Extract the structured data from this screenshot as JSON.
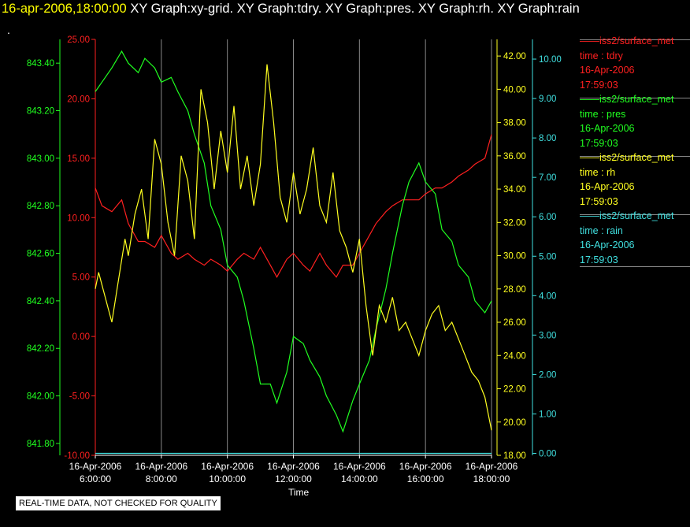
{
  "header": {
    "time": "16-apr-2006,18:00:00",
    "graphs": "XY Graph:xy-grid.  XY Graph:tdry.  XY Graph:pres.  XY Graph:rh.  XY Graph:rain",
    "dot": "."
  },
  "footer": {
    "quality_note": "REAL-TIME DATA, NOT CHECKED FOR QUALITY"
  },
  "legend": [
    {
      "source": "iss2/surface_met",
      "var": "time : tdry",
      "date": "16-Apr-2006",
      "time": "17:59:03",
      "color": "#ff2020"
    },
    {
      "source": "iss2/surface_met",
      "var": "time : pres",
      "date": "16-Apr-2006",
      "time": "17:59:03",
      "color": "#20ff20"
    },
    {
      "source": "iss2/surface_met",
      "var": "time : rh",
      "date": "16-Apr-2006",
      "time": "17:59:03",
      "color": "#ffff20"
    },
    {
      "source": "iss2/surface_met",
      "var": "time : rain",
      "date": "16-Apr-2006",
      "time": "17:59:03",
      "color": "#40e0e0"
    }
  ],
  "chart_data": {
    "type": "line",
    "xlabel": "Time",
    "x_ticks": [
      [
        "16-Apr-2006",
        "6:00:00"
      ],
      [
        "16-Apr-2006",
        "8:00:00"
      ],
      [
        "16-Apr-2006",
        "10:00:00"
      ],
      [
        "16-Apr-2006",
        "12:00:00"
      ],
      [
        "16-Apr-2006",
        "14:00:00"
      ],
      [
        "16-Apr-2006",
        "16:00:00"
      ],
      [
        "16-Apr-2006",
        "18:00:00"
      ]
    ],
    "xlim_hours": [
      6,
      18
    ],
    "grid": "vertical lines at each x tick",
    "axes": {
      "pres": {
        "color": "#20ff20",
        "lim": [
          841.75,
          843.5
        ],
        "ticks": [
          "841.80",
          "842.00",
          "842.20",
          "842.40",
          "842.60",
          "842.80",
          "843.00",
          "843.20",
          "843.40"
        ],
        "tick_values": [
          841.8,
          842.0,
          842.2,
          842.4,
          842.6,
          842.8,
          843.0,
          843.2,
          843.4
        ]
      },
      "tdry": {
        "color": "#ff2020",
        "lim": [
          -10,
          25
        ],
        "ticks": [
          "-10.00",
          "-5.00",
          "0.00",
          "5.00",
          "10.00",
          "15.00",
          "20.00",
          "25.00"
        ],
        "tick_values": [
          -10,
          -5,
          0,
          5,
          10,
          15,
          20,
          25
        ]
      },
      "rh": {
        "color": "#ffff20",
        "lim": [
          18,
          43
        ],
        "ticks": [
          "18.00",
          "20.00",
          "22.00",
          "24.00",
          "26.00",
          "28.00",
          "30.00",
          "32.00",
          "34.00",
          "36.00",
          "38.00",
          "40.00",
          "42.00"
        ],
        "tick_values": [
          18,
          20,
          22,
          24,
          26,
          28,
          30,
          32,
          34,
          36,
          38,
          40,
          42
        ]
      },
      "rain": {
        "color": "#40e0e0",
        "lim": [
          -0.05,
          10.5
        ],
        "ticks": [
          "0.00",
          "1.00",
          "2.00",
          "3.00",
          "4.00",
          "5.00",
          "6.00",
          "7.00",
          "8.00",
          "9.00",
          "10.00"
        ],
        "tick_values": [
          0,
          1,
          2,
          3,
          4,
          5,
          6,
          7,
          8,
          9,
          10
        ]
      }
    },
    "series": [
      {
        "name": "iss2/surface_met time : tdry",
        "axis": "tdry",
        "color": "#ff2020",
        "x": [
          6.0,
          6.2,
          6.5,
          6.8,
          7.0,
          7.3,
          7.5,
          7.8,
          8.0,
          8.3,
          8.5,
          8.8,
          9.0,
          9.3,
          9.5,
          9.8,
          10.0,
          10.3,
          10.5,
          10.8,
          11.0,
          11.3,
          11.5,
          11.8,
          12.0,
          12.3,
          12.5,
          12.8,
          13.0,
          13.3,
          13.5,
          13.8,
          14.0,
          14.3,
          14.5,
          14.8,
          15.0,
          15.3,
          15.5,
          15.8,
          16.0,
          16.3,
          16.5,
          16.8,
          17.0,
          17.3,
          17.5,
          17.8,
          18.0
        ],
        "y": [
          12.5,
          11.0,
          10.5,
          11.5,
          9.5,
          8.0,
          8.0,
          7.5,
          8.5,
          7.0,
          6.5,
          7.0,
          6.5,
          6.0,
          6.5,
          6.0,
          5.5,
          6.5,
          7.0,
          6.5,
          7.5,
          6.0,
          5.0,
          6.5,
          7.0,
          6.0,
          5.5,
          7.0,
          6.0,
          5.0,
          6.0,
          6.0,
          7.0,
          8.5,
          9.5,
          10.5,
          11.0,
          11.5,
          11.5,
          11.5,
          12.0,
          12.5,
          12.5,
          13.0,
          13.5,
          14.0,
          14.5,
          15.0,
          17.0
        ]
      },
      {
        "name": "iss2/surface_met time : pres",
        "axis": "pres",
        "color": "#20ff20",
        "x": [
          6.0,
          6.2,
          6.5,
          6.8,
          7.0,
          7.3,
          7.5,
          7.8,
          8.0,
          8.3,
          8.5,
          8.8,
          9.0,
          9.3,
          9.5,
          9.8,
          10.0,
          10.3,
          10.5,
          10.8,
          11.0,
          11.3,
          11.5,
          11.8,
          12.0,
          12.3,
          12.5,
          12.8,
          13.0,
          13.3,
          13.5,
          13.8,
          14.0,
          14.3,
          14.5,
          14.8,
          15.0,
          15.3,
          15.5,
          15.8,
          16.0,
          16.3,
          16.5,
          16.8,
          17.0,
          17.3,
          17.5,
          17.8,
          18.0
        ],
        "y": [
          843.28,
          843.32,
          843.38,
          843.45,
          843.4,
          843.36,
          843.42,
          843.38,
          843.32,
          843.34,
          843.28,
          843.2,
          843.1,
          842.98,
          842.8,
          842.7,
          842.55,
          842.5,
          842.4,
          842.2,
          842.05,
          842.05,
          841.97,
          842.1,
          842.25,
          842.22,
          842.15,
          842.08,
          842.0,
          841.92,
          841.85,
          841.98,
          842.05,
          842.15,
          842.28,
          842.45,
          842.6,
          842.8,
          842.9,
          842.98,
          842.9,
          842.85,
          842.7,
          842.65,
          842.55,
          842.5,
          842.4,
          842.35,
          842.4
        ]
      },
      {
        "name": "iss2/surface_met time : rh",
        "axis": "rh",
        "color": "#ffff20",
        "x": [
          6.0,
          6.1,
          6.3,
          6.5,
          6.7,
          6.9,
          7.0,
          7.2,
          7.4,
          7.6,
          7.8,
          8.0,
          8.2,
          8.4,
          8.6,
          8.8,
          9.0,
          9.2,
          9.4,
          9.6,
          9.8,
          10.0,
          10.2,
          10.4,
          10.6,
          10.8,
          11.0,
          11.2,
          11.4,
          11.6,
          11.8,
          12.0,
          12.2,
          12.4,
          12.6,
          12.8,
          13.0,
          13.2,
          13.4,
          13.6,
          13.8,
          14.0,
          14.2,
          14.4,
          14.6,
          14.8,
          15.0,
          15.2,
          15.4,
          15.6,
          15.8,
          16.0,
          16.2,
          16.4,
          16.6,
          16.8,
          17.0,
          17.2,
          17.4,
          17.6,
          17.8,
          18.0
        ],
        "y": [
          28.0,
          29.0,
          27.5,
          26.0,
          28.5,
          31.0,
          30.0,
          32.5,
          34.0,
          31.0,
          37.0,
          35.5,
          32.0,
          30.0,
          36.0,
          34.5,
          31.0,
          40.0,
          38.0,
          34.0,
          37.5,
          35.0,
          39.0,
          34.0,
          36.0,
          33.0,
          35.5,
          41.5,
          38.0,
          33.5,
          32.0,
          35.0,
          32.5,
          34.0,
          36.5,
          33.0,
          32.0,
          35.0,
          31.5,
          30.5,
          29.0,
          31.0,
          27.0,
          24.0,
          27.0,
          26.0,
          27.5,
          25.5,
          26.0,
          25.0,
          24.0,
          25.5,
          26.5,
          27.0,
          25.5,
          26.0,
          25.0,
          24.0,
          23.0,
          22.5,
          21.5,
          19.5
        ]
      },
      {
        "name": "iss2/surface_met time : rain",
        "axis": "rain",
        "color": "#40e0e0",
        "x": [
          6.0,
          18.0
        ],
        "y": [
          0.0,
          0.0
        ]
      }
    ]
  }
}
